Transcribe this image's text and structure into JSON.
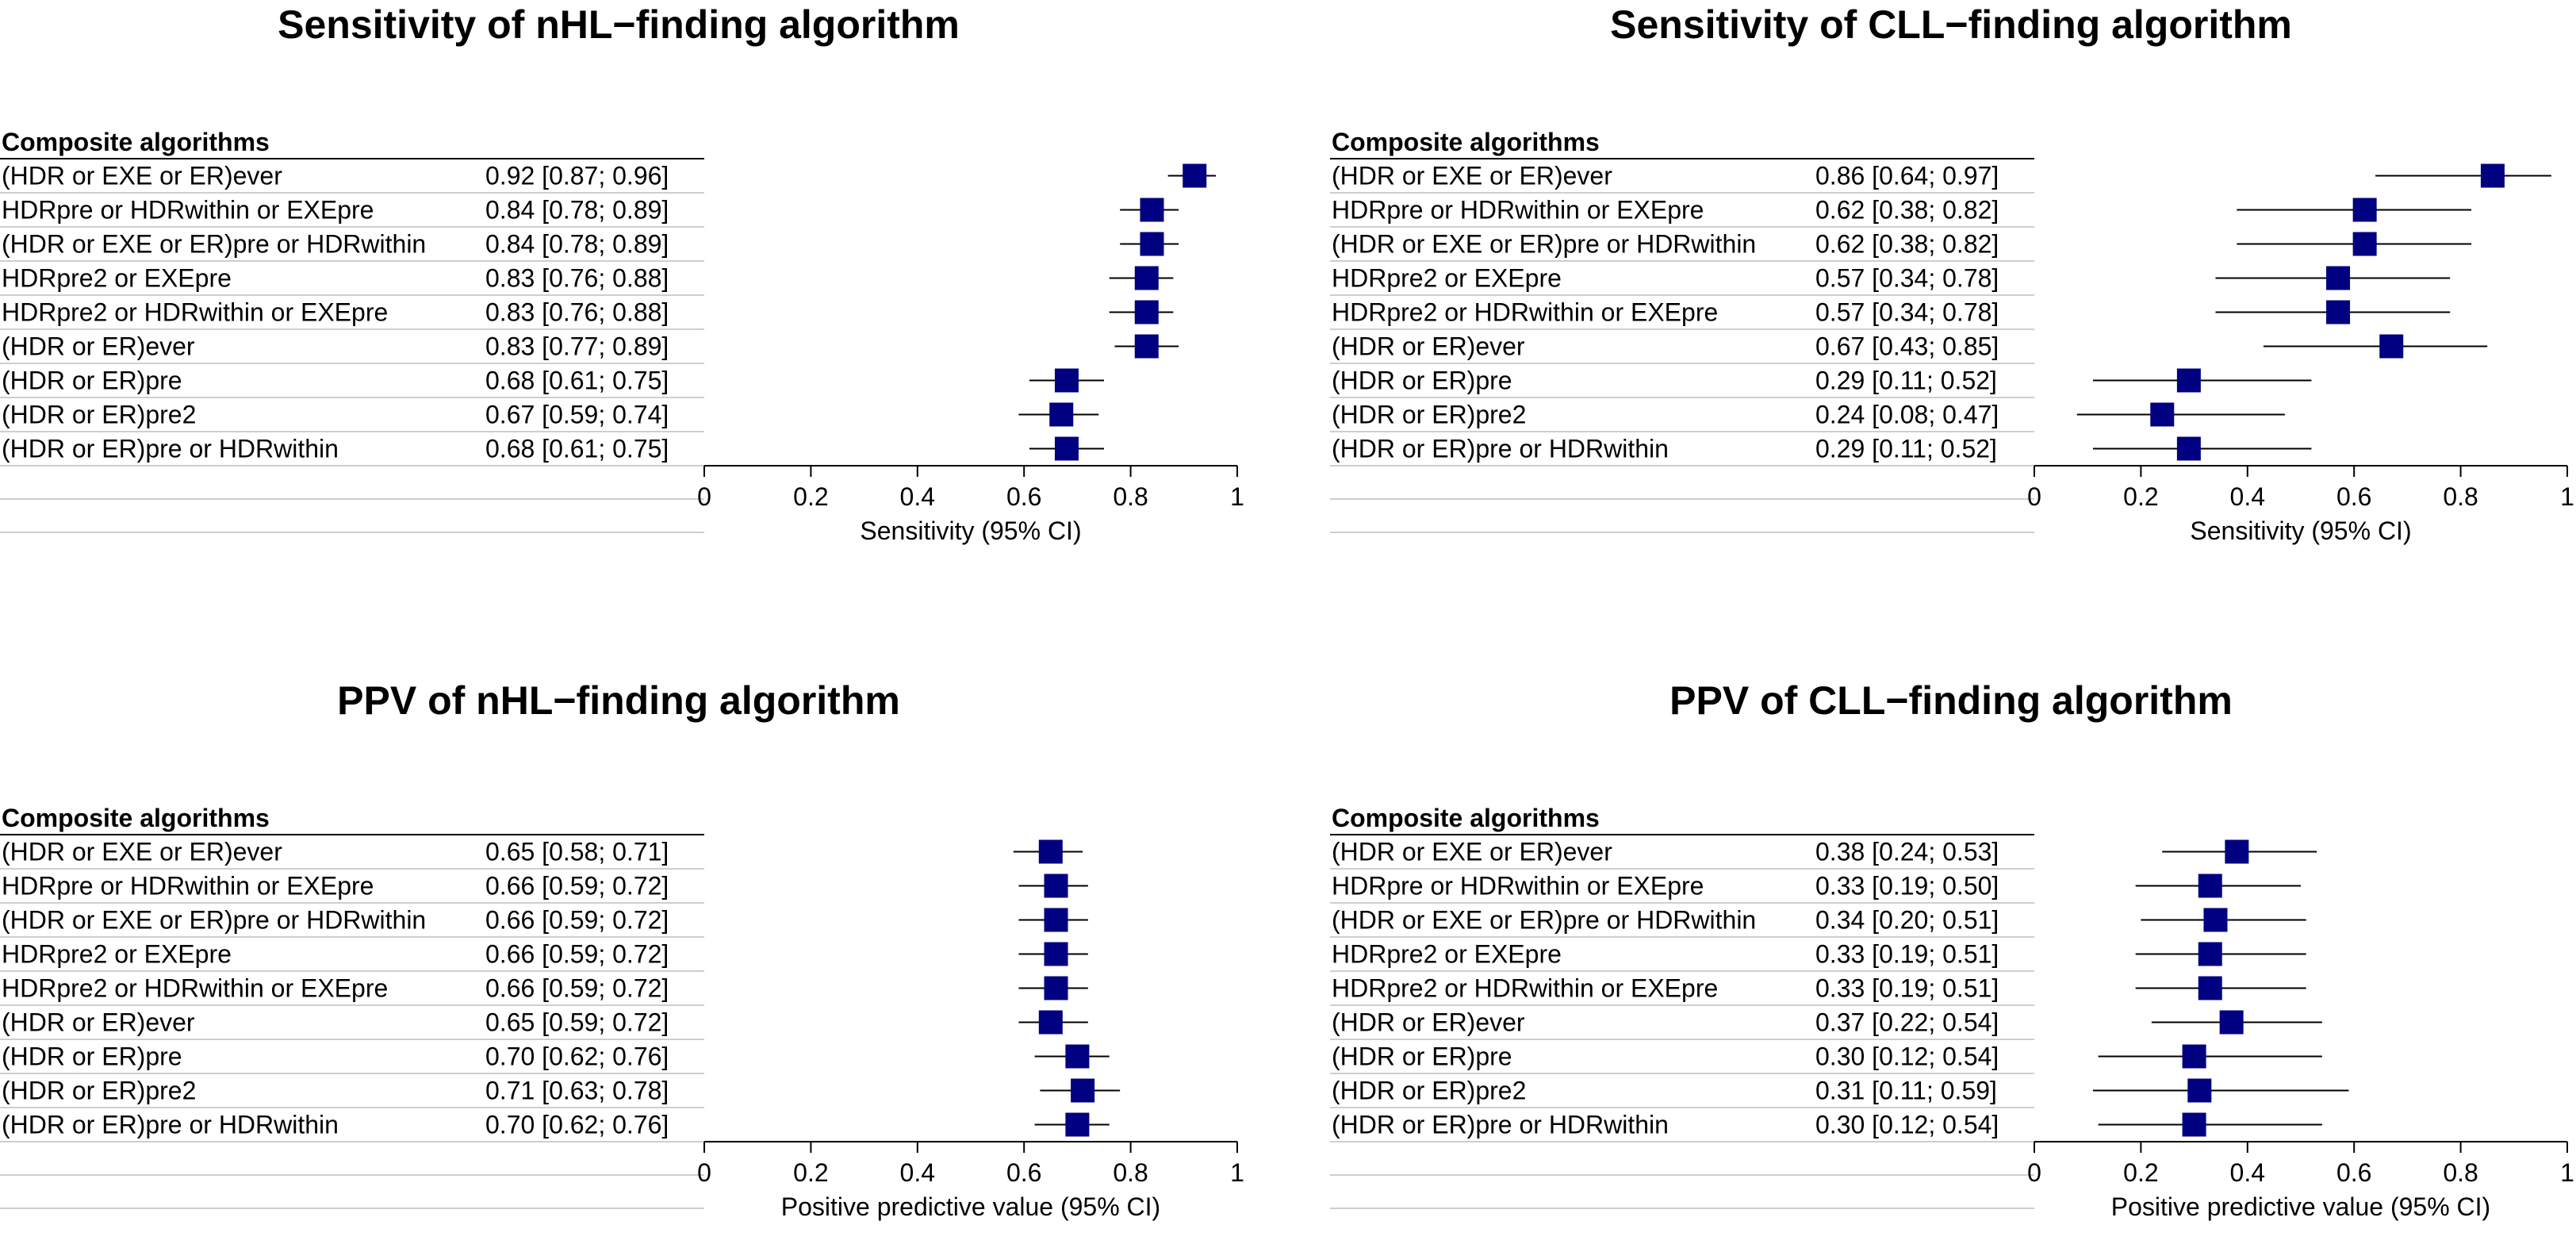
{
  "colors": {
    "marker": "#000080",
    "line": "#000000",
    "rowline": "#bebebe"
  },
  "table_header": "Composite algorithms",
  "chart_data": [
    {
      "type": "forest",
      "title": "Sensitivity of nHL−finding algorithm",
      "xlabel": "Sensitivity (95% CI)",
      "xlim": [
        0,
        1
      ],
      "ticks": [
        "0",
        "0.2",
        "0.4",
        "0.6",
        "0.8",
        "1"
      ],
      "rows": [
        {
          "label": "(HDR or EXE or ER)ever",
          "ci_text": "0.92 [0.87; 0.96]",
          "est": 0.92,
          "lo": 0.87,
          "hi": 0.96
        },
        {
          "label": "HDRpre or HDRwithin or EXEpre",
          "ci_text": "0.84 [0.78; 0.89]",
          "est": 0.84,
          "lo": 0.78,
          "hi": 0.89
        },
        {
          "label": "(HDR or EXE or ER)pre or HDRwithin",
          "ci_text": "0.84 [0.78; 0.89]",
          "est": 0.84,
          "lo": 0.78,
          "hi": 0.89
        },
        {
          "label": "HDRpre2 or EXEpre",
          "ci_text": "0.83 [0.76; 0.88]",
          "est": 0.83,
          "lo": 0.76,
          "hi": 0.88
        },
        {
          "label": "HDRpre2 or HDRwithin or EXEpre",
          "ci_text": "0.83 [0.76; 0.88]",
          "est": 0.83,
          "lo": 0.76,
          "hi": 0.88
        },
        {
          "label": "(HDR or ER)ever",
          "ci_text": "0.83 [0.77; 0.89]",
          "est": 0.83,
          "lo": 0.77,
          "hi": 0.89
        },
        {
          "label": "(HDR or ER)pre",
          "ci_text": "0.68 [0.61; 0.75]",
          "est": 0.68,
          "lo": 0.61,
          "hi": 0.75
        },
        {
          "label": "(HDR or ER)pre2",
          "ci_text": "0.67 [0.59; 0.74]",
          "est": 0.67,
          "lo": 0.59,
          "hi": 0.74
        },
        {
          "label": "(HDR or ER)pre or HDRwithin",
          "ci_text": "0.68 [0.61; 0.75]",
          "est": 0.68,
          "lo": 0.61,
          "hi": 0.75
        }
      ]
    },
    {
      "type": "forest",
      "title": "Sensitivity of CLL−finding algorithm",
      "xlabel": "Sensitivity (95% CI)",
      "xlim": [
        0,
        1
      ],
      "ticks": [
        "0",
        "0.2",
        "0.4",
        "0.6",
        "0.8",
        "1"
      ],
      "rows": [
        {
          "label": "(HDR or EXE or ER)ever",
          "ci_text": "0.86 [0.64; 0.97]",
          "est": 0.86,
          "lo": 0.64,
          "hi": 0.97
        },
        {
          "label": "HDRpre or HDRwithin or EXEpre",
          "ci_text": "0.62 [0.38; 0.82]",
          "est": 0.62,
          "lo": 0.38,
          "hi": 0.82
        },
        {
          "label": "(HDR or EXE or ER)pre or HDRwithin",
          "ci_text": "0.62 [0.38; 0.82]",
          "est": 0.62,
          "lo": 0.38,
          "hi": 0.82
        },
        {
          "label": "HDRpre2 or EXEpre",
          "ci_text": "0.57 [0.34; 0.78]",
          "est": 0.57,
          "lo": 0.34,
          "hi": 0.78
        },
        {
          "label": "HDRpre2 or HDRwithin or EXEpre",
          "ci_text": "0.57 [0.34; 0.78]",
          "est": 0.57,
          "lo": 0.34,
          "hi": 0.78
        },
        {
          "label": "(HDR or ER)ever",
          "ci_text": "0.67 [0.43; 0.85]",
          "est": 0.67,
          "lo": 0.43,
          "hi": 0.85
        },
        {
          "label": "(HDR or ER)pre",
          "ci_text": "0.29 [0.11; 0.52]",
          "est": 0.29,
          "lo": 0.11,
          "hi": 0.52
        },
        {
          "label": "(HDR or ER)pre2",
          "ci_text": "0.24 [0.08; 0.47]",
          "est": 0.24,
          "lo": 0.08,
          "hi": 0.47
        },
        {
          "label": "(HDR or ER)pre or HDRwithin",
          "ci_text": "0.29 [0.11; 0.52]",
          "est": 0.29,
          "lo": 0.11,
          "hi": 0.52
        }
      ]
    },
    {
      "type": "forest",
      "title": "PPV of nHL−finding algorithm",
      "xlabel": "Positive predictive value (95% CI)",
      "xlim": [
        0,
        1
      ],
      "ticks": [
        "0",
        "0.2",
        "0.4",
        "0.6",
        "0.8",
        "1"
      ],
      "rows": [
        {
          "label": "(HDR or EXE or ER)ever",
          "ci_text": "0.65 [0.58; 0.71]",
          "est": 0.65,
          "lo": 0.58,
          "hi": 0.71
        },
        {
          "label": "HDRpre or HDRwithin or EXEpre",
          "ci_text": "0.66 [0.59; 0.72]",
          "est": 0.66,
          "lo": 0.59,
          "hi": 0.72
        },
        {
          "label": "(HDR or EXE or ER)pre or HDRwithin",
          "ci_text": "0.66 [0.59; 0.72]",
          "est": 0.66,
          "lo": 0.59,
          "hi": 0.72
        },
        {
          "label": "HDRpre2 or EXEpre",
          "ci_text": "0.66 [0.59; 0.72]",
          "est": 0.66,
          "lo": 0.59,
          "hi": 0.72
        },
        {
          "label": "HDRpre2 or HDRwithin or EXEpre",
          "ci_text": "0.66 [0.59; 0.72]",
          "est": 0.66,
          "lo": 0.59,
          "hi": 0.72
        },
        {
          "label": "(HDR or ER)ever",
          "ci_text": "0.65 [0.59; 0.72]",
          "est": 0.65,
          "lo": 0.59,
          "hi": 0.72
        },
        {
          "label": "(HDR or ER)pre",
          "ci_text": "0.70 [0.62; 0.76]",
          "est": 0.7,
          "lo": 0.62,
          "hi": 0.76
        },
        {
          "label": "(HDR or ER)pre2",
          "ci_text": "0.71 [0.63; 0.78]",
          "est": 0.71,
          "lo": 0.63,
          "hi": 0.78
        },
        {
          "label": "(HDR or ER)pre or HDRwithin",
          "ci_text": "0.70 [0.62; 0.76]",
          "est": 0.7,
          "lo": 0.62,
          "hi": 0.76
        }
      ]
    },
    {
      "type": "forest",
      "title": "PPV of CLL−finding algorithm",
      "xlabel": "Positive predictive value (95% CI)",
      "xlim": [
        0,
        1
      ],
      "ticks": [
        "0",
        "0.2",
        "0.4",
        "0.6",
        "0.8",
        "1"
      ],
      "rows": [
        {
          "label": "(HDR or EXE or ER)ever",
          "ci_text": "0.38 [0.24; 0.53]",
          "est": 0.38,
          "lo": 0.24,
          "hi": 0.53
        },
        {
          "label": "HDRpre or HDRwithin or EXEpre",
          "ci_text": "0.33 [0.19; 0.50]",
          "est": 0.33,
          "lo": 0.19,
          "hi": 0.5
        },
        {
          "label": "(HDR or EXE or ER)pre or HDRwithin",
          "ci_text": "0.34 [0.20; 0.51]",
          "est": 0.34,
          "lo": 0.2,
          "hi": 0.51
        },
        {
          "label": "HDRpre2 or EXEpre",
          "ci_text": "0.33 [0.19; 0.51]",
          "est": 0.33,
          "lo": 0.19,
          "hi": 0.51
        },
        {
          "label": "HDRpre2 or HDRwithin or EXEpre",
          "ci_text": "0.33 [0.19; 0.51]",
          "est": 0.33,
          "lo": 0.19,
          "hi": 0.51
        },
        {
          "label": "(HDR or ER)ever",
          "ci_text": "0.37 [0.22; 0.54]",
          "est": 0.37,
          "lo": 0.22,
          "hi": 0.54
        },
        {
          "label": "(HDR or ER)pre",
          "ci_text": "0.30 [0.12; 0.54]",
          "est": 0.3,
          "lo": 0.12,
          "hi": 0.54
        },
        {
          "label": "(HDR or ER)pre2",
          "ci_text": "0.31 [0.11; 0.59]",
          "est": 0.31,
          "lo": 0.11,
          "hi": 0.59
        },
        {
          "label": "(HDR or ER)pre or HDRwithin",
          "ci_text": "0.30 [0.12; 0.54]",
          "est": 0.3,
          "lo": 0.12,
          "hi": 0.54
        }
      ]
    }
  ]
}
